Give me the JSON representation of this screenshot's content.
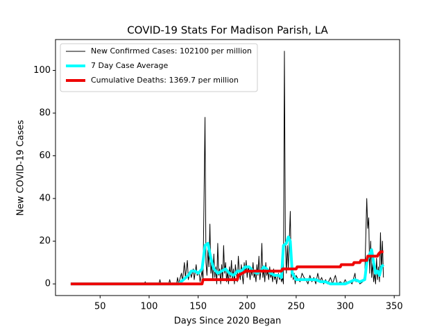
{
  "chart_data": {
    "type": "line",
    "title": "COVID-19 Stats For Madison Parish, LA",
    "x_label": "Days Since 2020 Began",
    "y_label": "New COVID-19 Cases",
    "xlim": [
      4.5,
      355.5
    ],
    "ylim": [
      -5.45,
      114.45
    ],
    "xticks": [
      50,
      100,
      150,
      200,
      250,
      300,
      350
    ],
    "yticks": [
      0,
      20,
      40,
      60,
      80,
      100
    ],
    "grid": false,
    "legend": "upper left",
    "series": [
      {
        "name": "New Confirmed Cases: 102100 per million",
        "color": "#000000",
        "width": 1,
        "x": [
          20,
          95,
          96,
          97,
          110,
          111,
          112,
          120,
          121,
          122,
          128,
          129,
          130,
          133,
          134,
          136,
          137,
          139,
          140,
          142,
          143,
          145,
          146,
          148,
          149,
          151,
          152,
          154,
          155,
          157,
          158,
          159,
          160,
          161,
          162,
          163,
          164,
          165,
          166,
          167,
          168,
          169,
          170,
          171,
          172,
          173,
          174,
          175,
          176,
          177,
          178,
          179,
          180,
          181,
          182,
          183,
          184,
          185,
          186,
          187,
          188,
          189,
          190,
          191,
          192,
          193,
          194,
          195,
          196,
          197,
          198,
          199,
          200,
          201,
          202,
          203,
          204,
          205,
          206,
          207,
          208,
          209,
          210,
          211,
          212,
          213,
          214,
          215,
          216,
          217,
          218,
          219,
          220,
          221,
          222,
          223,
          224,
          225,
          226,
          227,
          228,
          229,
          230,
          231,
          232,
          233,
          234,
          235,
          236,
          237,
          238,
          239,
          240,
          241,
          242,
          243,
          244,
          245,
          246,
          247,
          248,
          249,
          250,
          252,
          254,
          256,
          258,
          260,
          262,
          264,
          266,
          268,
          270,
          272,
          274,
          276,
          278,
          280,
          282,
          285,
          287,
          290,
          292,
          295,
          298,
          300,
          302,
          305,
          307,
          310,
          311,
          313,
          315,
          318,
          320,
          322,
          323,
          324,
          325,
          326,
          327,
          328,
          329,
          330,
          331,
          332,
          333,
          334,
          335,
          336,
          337,
          338,
          339
        ],
        "values": [
          0,
          0,
          1,
          0,
          0,
          2,
          0,
          0,
          2,
          0,
          0,
          3,
          0,
          5,
          1,
          10,
          3,
          11,
          2,
          6,
          3,
          7,
          2,
          9,
          4,
          5,
          1,
          6,
          2,
          78,
          10,
          4,
          16,
          8,
          28,
          5,
          10,
          2,
          14,
          3,
          8,
          0,
          19,
          4,
          7,
          0,
          9,
          2,
          18,
          5,
          10,
          1,
          6,
          0,
          8,
          3,
          11,
          2,
          7,
          0,
          9,
          5,
          1,
          13,
          6,
          2,
          9,
          4,
          0,
          10,
          5,
          11,
          3,
          8,
          6,
          2,
          7,
          4,
          10,
          3,
          5,
          1,
          9,
          4,
          13,
          2,
          6,
          19,
          3,
          7,
          1,
          10,
          4,
          6,
          2,
          8,
          3,
          5,
          1,
          7,
          2,
          4,
          0,
          3,
          5,
          2,
          4,
          1,
          3,
          0,
          109,
          20,
          5,
          18,
          7,
          21,
          34,
          3,
          8,
          2,
          5,
          0,
          4,
          2,
          1,
          5,
          3,
          2,
          0,
          4,
          1,
          3,
          0,
          5,
          1,
          3,
          0,
          2,
          0,
          3,
          0,
          4,
          0,
          1,
          0,
          2,
          0,
          1,
          0,
          5,
          1,
          2,
          0,
          1,
          4,
          40,
          26,
          31,
          5,
          20,
          3,
          10,
          1,
          5,
          0,
          12,
          2,
          8,
          1,
          24,
          6,
          20,
          3
        ]
      },
      {
        "name": "7 Day Case Average",
        "color": "#00ffff",
        "width": 4,
        "x": [
          20,
          130,
          135,
          140,
          143,
          147,
          150,
          154,
          157,
          160,
          163,
          166,
          170,
          174,
          178,
          182,
          186,
          190,
          194,
          198,
          202,
          206,
          210,
          214,
          217,
          220,
          224,
          228,
          232,
          235,
          237,
          240,
          242,
          244,
          246,
          250,
          255,
          260,
          265,
          270,
          275,
          280,
          285,
          290,
          295,
          300,
          305,
          310,
          315,
          320,
          322,
          325,
          327,
          329,
          331,
          333,
          335,
          337,
          339
        ],
        "values": [
          0,
          0,
          2,
          4,
          6,
          6,
          5,
          7,
          18,
          19,
          12,
          7,
          5,
          6,
          7,
          5,
          4,
          6,
          6,
          8,
          8,
          6,
          5,
          6,
          8,
          7,
          5,
          4,
          4,
          3,
          18,
          19,
          22,
          20,
          5,
          2,
          2,
          2,
          2,
          2,
          1,
          1,
          0,
          0,
          0,
          0,
          1,
          2,
          1,
          2,
          10,
          14,
          16,
          10,
          5,
          6,
          4,
          8,
          9
        ]
      },
      {
        "name": "Cumulative Deaths: 1369.7 per million",
        "color": "#ee0000",
        "width": 4,
        "x": [
          20,
          154,
          155,
          190,
          191,
          195,
          199,
          235,
          236,
          250,
          251,
          295,
          296,
          308,
          309,
          315,
          316,
          322,
          323,
          333,
          334,
          336,
          339
        ],
        "values": [
          0,
          0,
          2,
          2,
          4,
          5,
          6,
          6,
          7,
          7,
          8,
          8,
          9,
          9,
          10,
          10,
          11,
          11,
          13,
          13,
          14,
          15,
          15
        ]
      }
    ]
  }
}
